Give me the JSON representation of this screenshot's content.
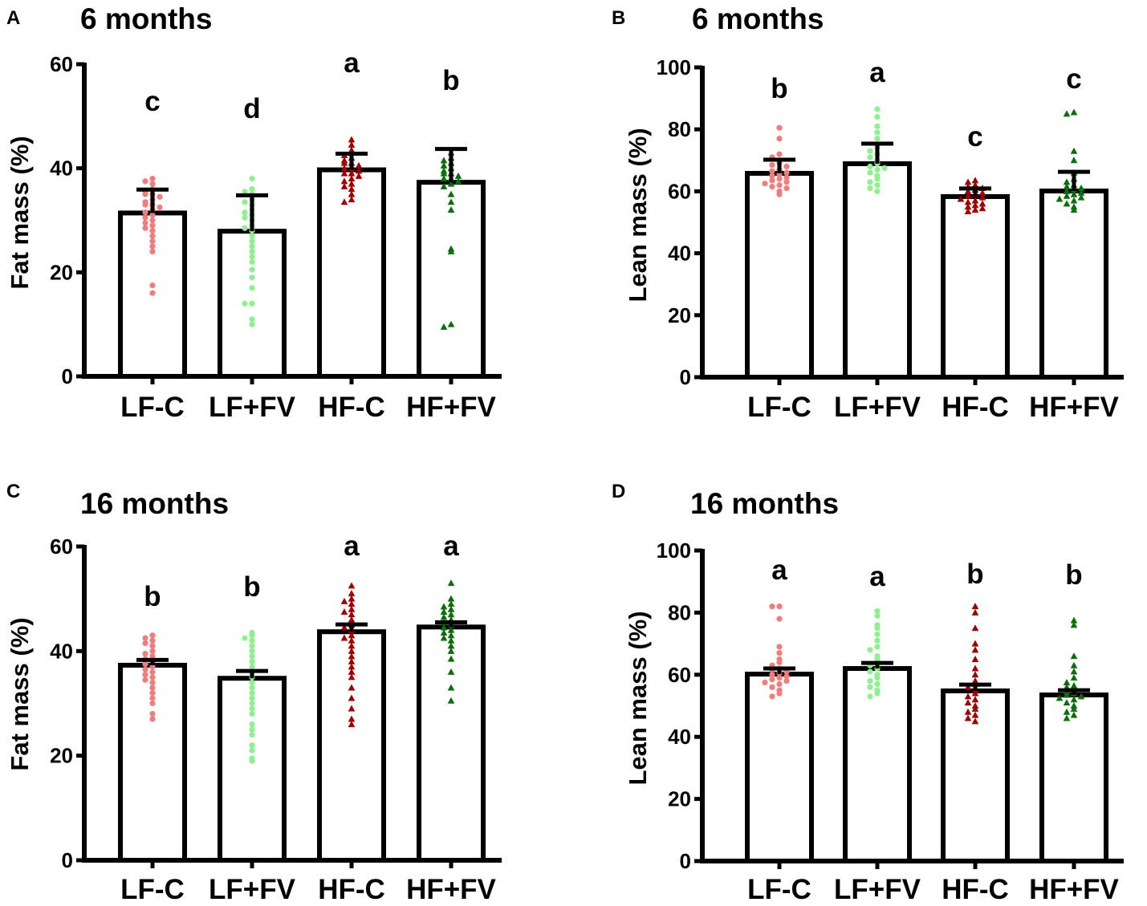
{
  "chart_data": [
    {
      "type": "bar",
      "panel_label": "A",
      "title": "6 months",
      "ylabel": "Fat mass (%)",
      "xlabel": "",
      "ylim": [
        0,
        60
      ],
      "yticks": [
        0,
        20,
        40,
        60
      ],
      "categories": [
        "LF-C",
        "LF+FV",
        "HF-C",
        "HF+FV"
      ],
      "values": [
        31.4,
        27.9,
        39.7,
        37.3
      ],
      "error_upper": [
        35.9,
        34.8,
        42.8,
        43.7
      ],
      "significance": [
        "c",
        "d",
        "a",
        "b"
      ],
      "colors": [
        "#f27c7c",
        "#8ff08f",
        "#a00000",
        "#0a6e0a"
      ],
      "markers": [
        "circle",
        "circle",
        "triangle",
        "triangle"
      ],
      "points": [
        [
          38,
          37.5,
          37,
          36,
          35.5,
          35,
          35,
          34.5,
          34,
          33.5,
          33,
          33,
          32.5,
          32,
          31.5,
          31,
          30.5,
          30,
          29.5,
          29,
          28.5,
          28,
          27,
          26,
          25,
          24,
          17.5,
          16
        ],
        [
          38,
          36,
          35.5,
          35,
          34,
          33.5,
          33,
          32,
          31.5,
          31,
          30.5,
          30,
          29,
          28.5,
          28,
          27,
          26,
          25,
          24,
          23,
          22,
          20.5,
          19,
          17,
          14,
          14,
          11,
          10
        ],
        [
          45.5,
          44.5,
          43.5,
          43,
          42.5,
          42,
          41.5,
          41,
          41,
          40.5,
          40,
          40,
          39.5,
          39,
          39,
          38.5,
          38,
          37.5,
          37,
          36.5,
          36,
          35,
          34,
          33.5
        ],
        [
          43,
          42,
          41.5,
          41,
          40.5,
          40,
          39.5,
          39,
          39,
          38.5,
          38,
          38,
          37.5,
          37,
          36.5,
          35,
          33.5,
          32,
          24.5,
          24,
          10,
          9.5
        ]
      ]
    },
    {
      "type": "bar",
      "panel_label": "B",
      "title": "6 months",
      "ylabel": "Lean mass (%)",
      "xlabel": "",
      "ylim": [
        0,
        100
      ],
      "yticks": [
        0,
        20,
        40,
        60,
        80,
        100
      ],
      "categories": [
        "LF-C",
        "LF+FV",
        "HF-C",
        "HF+FV"
      ],
      "values": [
        65.8,
        68.9,
        58.3,
        60.1
      ],
      "error_upper": [
        70.2,
        75.4,
        60.9,
        66.3
      ],
      "significance": [
        "b",
        "a",
        "c",
        "c"
      ],
      "colors": [
        "#f27c7c",
        "#8ff08f",
        "#a00000",
        "#0a6e0a"
      ],
      "markers": [
        "circle",
        "circle",
        "triangle",
        "triangle"
      ],
      "points": [
        [
          80.5,
          77,
          72,
          71,
          70,
          69,
          68.5,
          68,
          67,
          66.5,
          66,
          65.5,
          65,
          64.5,
          64,
          63.5,
          63,
          62.5,
          62,
          61.5,
          61,
          60,
          59
        ],
        [
          86.5,
          84,
          81,
          79,
          77,
          75,
          74,
          73,
          72,
          71,
          70,
          69,
          68,
          67.5,
          67,
          66,
          65,
          64,
          63,
          62,
          61,
          60
        ],
        [
          63.5,
          63,
          62,
          61.5,
          61,
          60.5,
          60,
          59.5,
          59,
          58.5,
          58,
          57.5,
          57,
          56.5,
          56,
          55.5,
          55,
          54.5,
          54,
          53.5
        ],
        [
          85.5,
          85,
          73,
          70,
          66,
          64,
          63,
          62,
          61.5,
          61,
          60.5,
          60,
          59.5,
          59,
          58.5,
          58,
          57.5,
          57,
          56,
          55,
          54
        ]
      ]
    },
    {
      "type": "bar",
      "panel_label": "C",
      "title": "16 months",
      "ylabel": "Fat mass (%)",
      "xlabel": "",
      "ylim": [
        0,
        60
      ],
      "yticks": [
        0,
        20,
        40,
        60
      ],
      "categories": [
        "LF-C",
        "LF+FV",
        "HF-C",
        "HF+FV"
      ],
      "values": [
        37.3,
        34.8,
        43.7,
        44.6
      ],
      "error_upper": [
        38.3,
        36.2,
        45.1,
        45.5
      ],
      "significance": [
        "b",
        "b",
        "a",
        "a"
      ],
      "colors": [
        "#f27c7c",
        "#8ff08f",
        "#a00000",
        "#0a6e0a"
      ],
      "markers": [
        "circle",
        "circle",
        "triangle",
        "triangle"
      ],
      "points": [
        [
          43,
          42.5,
          42,
          41.5,
          41,
          40,
          39.5,
          39,
          38.5,
          38,
          37.5,
          37,
          36.5,
          36,
          35.5,
          35,
          34.5,
          34,
          33,
          32,
          31,
          30,
          28,
          27
        ],
        [
          43.5,
          43,
          42.5,
          42,
          41,
          40,
          39,
          38,
          37,
          36,
          35,
          34,
          33,
          32,
          31,
          30,
          29,
          28,
          26,
          25,
          24,
          22,
          21,
          19.5,
          19
        ],
        [
          52.5,
          51,
          50,
          49.5,
          49,
          48,
          47.5,
          47,
          46,
          45,
          44.5,
          44,
          43,
          42.5,
          42,
          41,
          40,
          39,
          38,
          37,
          36,
          35,
          33,
          31,
          29,
          27,
          26
        ],
        [
          53,
          50,
          49,
          48.5,
          48,
          47.5,
          47,
          46.5,
          46,
          45.5,
          45,
          44.5,
          44,
          43.5,
          43,
          42.5,
          42,
          41,
          40,
          38.5,
          36,
          33,
          30.5
        ]
      ]
    },
    {
      "type": "bar",
      "panel_label": "D",
      "title": "16 months",
      "ylabel": "Lean mass (%)",
      "xlabel": "",
      "ylim": [
        0,
        100
      ],
      "yticks": [
        0,
        20,
        40,
        60,
        80,
        100
      ],
      "categories": [
        "LF-C",
        "LF+FV",
        "HF-C",
        "HF+FV"
      ],
      "values": [
        60.2,
        62.0,
        54.8,
        53.5
      ],
      "error_upper": [
        62.0,
        63.8,
        56.8,
        55.0
      ],
      "significance": [
        "a",
        "a",
        "b",
        "b"
      ],
      "colors": [
        "#f27c7c",
        "#8ff08f",
        "#a00000",
        "#0a6e0a"
      ],
      "markers": [
        "circle",
        "circle",
        "triangle",
        "triangle"
      ],
      "points": [
        [
          82,
          82,
          78,
          69,
          67,
          65,
          64,
          63,
          62,
          61.5,
          61,
          60.5,
          60,
          59.5,
          59,
          58.5,
          58,
          57.5,
          57,
          56,
          55,
          54,
          53
        ],
        [
          80.5,
          79,
          76,
          75,
          73,
          71,
          69,
          68,
          66,
          65,
          64,
          63,
          62,
          61,
          60,
          59,
          58,
          57,
          56,
          55,
          54,
          53
        ],
        [
          82,
          80,
          75,
          70,
          68,
          65,
          62,
          60,
          58,
          57,
          56,
          55,
          54,
          53,
          52,
          51,
          50,
          49,
          48,
          47,
          46,
          45
        ],
        [
          77.5,
          76,
          66,
          63,
          61,
          59,
          57.5,
          56.5,
          56,
          55,
          54.5,
          54,
          53.5,
          53,
          52.5,
          52,
          51,
          50,
          49,
          48,
          47,
          46
        ]
      ]
    }
  ]
}
